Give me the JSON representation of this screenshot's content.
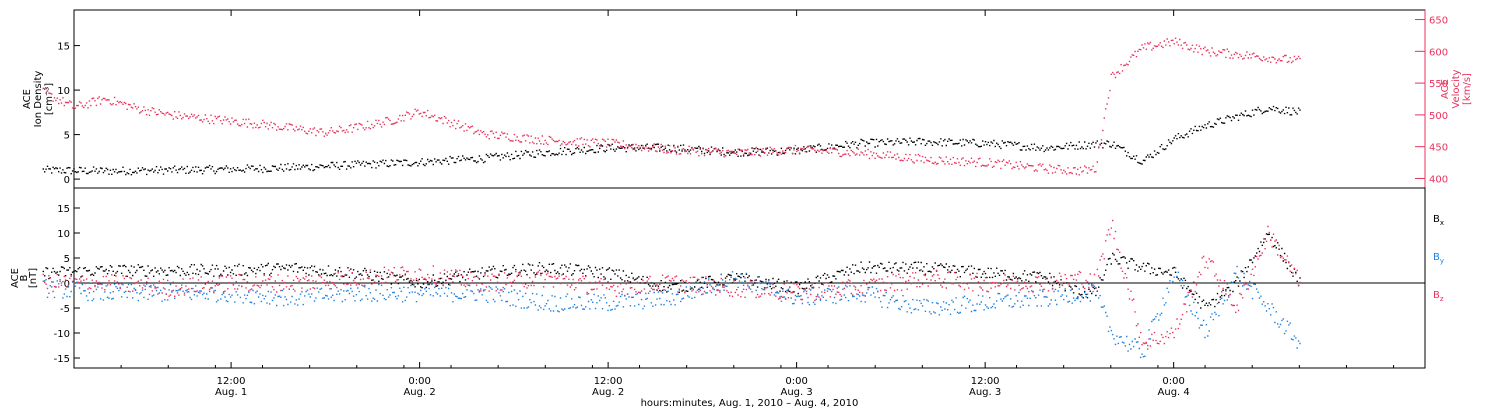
{
  "chart_data": [
    {
      "type": "scatter",
      "panel": "top",
      "ylabel_left_lines": [
        "ACE",
        "Ion Density",
        "[cm⁻³]"
      ],
      "ylabel_right_lines": [
        "ACE",
        "Velocity",
        "[km/s]"
      ],
      "left_ticks": [
        "0",
        "5",
        "10",
        "15"
      ],
      "right_ticks": [
        "400",
        "450",
        "500",
        "550",
        "600",
        "650"
      ],
      "ylim_left": [
        -1,
        19
      ],
      "ylim_right": [
        385,
        665
      ],
      "series": [
        {
          "axis": "left",
          "color": "#000000",
          "x_hours": [
            0,
            4,
            8,
            12,
            16,
            20,
            24,
            28,
            32,
            36,
            40,
            44,
            48,
            52,
            56,
            60,
            64,
            66,
            68,
            70,
            72,
            74,
            76,
            78,
            80
          ],
          "y": [
            1.0,
            0.9,
            1.0,
            1.1,
            1.3,
            1.6,
            1.9,
            2.3,
            3.0,
            3.5,
            3.5,
            3.0,
            3.2,
            4.0,
            4.2,
            4.0,
            3.5,
            3.8,
            4.0,
            2.0,
            4.5,
            6.0,
            7.0,
            8.0,
            7.5
          ]
        },
        {
          "axis": "right",
          "color": "#e8335e",
          "x_hours": [
            0,
            2,
            4,
            6,
            8,
            10,
            12,
            14,
            16,
            18,
            20,
            22,
            24,
            28,
            32,
            36,
            40,
            44,
            48,
            52,
            56,
            60,
            64,
            66,
            67,
            68,
            70,
            72,
            74,
            76,
            78,
            80
          ],
          "y": [
            535,
            512,
            525,
            510,
            500,
            495,
            490,
            485,
            478,
            472,
            480,
            490,
            505,
            470,
            460,
            455,
            445,
            440,
            445,
            440,
            430,
            425,
            415,
            412,
            415,
            560,
            605,
            615,
            600,
            595,
            590,
            585
          ]
        }
      ]
    },
    {
      "type": "scatter",
      "panel": "bottom",
      "ylabel_lines": [
        "ACE",
        "B",
        "[nT]"
      ],
      "left_ticks": [
        "-15",
        "-10",
        "-5",
        "0",
        "5",
        "10",
        "15"
      ],
      "ylim": [
        -17,
        19
      ],
      "legend": [
        "Bx",
        "By",
        "Bz"
      ],
      "series": [
        {
          "name": "Bx",
          "color": "#000000",
          "x_hours": [
            0,
            4,
            8,
            12,
            16,
            20,
            24,
            28,
            32,
            36,
            40,
            44,
            48,
            52,
            56,
            60,
            64,
            66,
            67,
            68,
            70,
            72,
            74,
            76,
            78,
            80
          ],
          "y": [
            2,
            2.5,
            2.5,
            2.5,
            3,
            2,
            0,
            2,
            3,
            2,
            -1,
            1,
            -1,
            3,
            3,
            2,
            1,
            -2,
            -2,
            5,
            3,
            2,
            -5,
            0,
            10,
            0
          ]
        },
        {
          "name": "By",
          "color": "#1e80e0",
          "x_hours": [
            0,
            4,
            8,
            12,
            16,
            20,
            24,
            28,
            32,
            36,
            40,
            44,
            48,
            52,
            56,
            60,
            64,
            66,
            67,
            68,
            70,
            72,
            74,
            76,
            78,
            80
          ],
          "y": [
            -1,
            -2,
            -2,
            -2,
            -3,
            -2,
            -2,
            -2,
            -4,
            -4,
            -3,
            1,
            -3,
            -2,
            -5,
            -4,
            -3,
            -2,
            -2,
            -10,
            -14,
            2,
            -10,
            2,
            -5,
            -12
          ]
        },
        {
          "name": "Bz",
          "color": "#e8335e",
          "x_hours": [
            0,
            4,
            8,
            12,
            16,
            20,
            24,
            28,
            32,
            36,
            40,
            44,
            48,
            52,
            56,
            60,
            64,
            66,
            67,
            68,
            70,
            72,
            74,
            76,
            78,
            80
          ],
          "y": [
            0,
            0,
            -1,
            0,
            0,
            1,
            2,
            0,
            1,
            -1,
            0,
            -1,
            -2,
            -1,
            1,
            0,
            0,
            1,
            0,
            12,
            -12,
            -10,
            5,
            -5,
            10,
            0
          ]
        }
      ]
    }
  ],
  "x_axis": {
    "ticks": [
      {
        "hours": 12,
        "time": "12:00",
        "date": "Aug. 1"
      },
      {
        "hours": 24,
        "time": "0:00",
        "date": "Aug. 2"
      },
      {
        "hours": 36,
        "time": "12:00",
        "date": "Aug. 2"
      },
      {
        "hours": 48,
        "time": "0:00",
        "date": "Aug. 3"
      },
      {
        "hours": 60,
        "time": "12:00",
        "date": "Aug. 3"
      },
      {
        "hours": 72,
        "time": "0:00",
        "date": "Aug. 4"
      }
    ],
    "range_hours": [
      2,
      88
    ],
    "label": "hours:minutes, Aug.  1, 2010 – Aug.  4, 2010"
  }
}
